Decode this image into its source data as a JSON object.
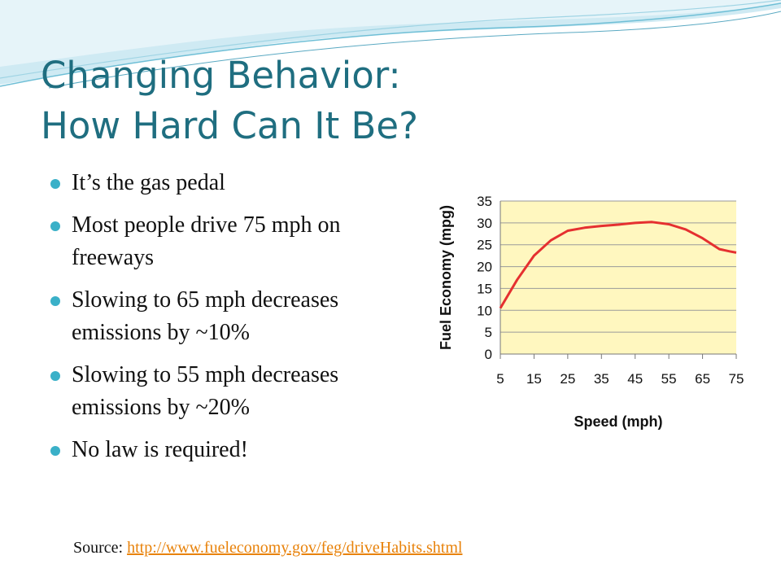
{
  "slide": {
    "title_line1": "Changing Behavior:",
    "title_line2": "How Hard Can It Be?",
    "bullets": [
      "It’s the gas pedal",
      "Most people drive 75 mph on freeways",
      "Slowing to 65 mph decreases emissions by ~10%",
      "Slowing to 55 mph decreases emissions by ~20%",
      "No law is required!"
    ],
    "source_label": "Source:",
    "source_link": "http://www.fueleconomy.gov/feg/driveHabits.shtml"
  },
  "colors": {
    "title": "#1f6e80",
    "bullet": "#3ab0c8",
    "plot_bg": "#fff7bf",
    "line": "#e53030",
    "link": "#e8820a"
  },
  "chart_data": {
    "type": "line",
    "title": "",
    "xlabel": "Speed (mph)",
    "ylabel": "Fuel Economy (mpg)",
    "xlim": [
      5,
      75
    ],
    "ylim": [
      0,
      35
    ],
    "x_ticks": [
      5,
      15,
      25,
      35,
      45,
      55,
      65,
      75
    ],
    "y_ticks": [
      0,
      5,
      10,
      15,
      20,
      25,
      30,
      35
    ],
    "grid": true,
    "series": [
      {
        "x": [
          5,
          10,
          15,
          20,
          25,
          30,
          35,
          40,
          45,
          50,
          55,
          60,
          65,
          70,
          73,
          75
        ],
        "values": [
          10.5,
          17,
          22.5,
          26,
          28.2,
          28.9,
          29.3,
          29.6,
          30,
          30.2,
          29.7,
          28.5,
          26.5,
          24,
          23.5,
          23.2
        ]
      }
    ]
  }
}
